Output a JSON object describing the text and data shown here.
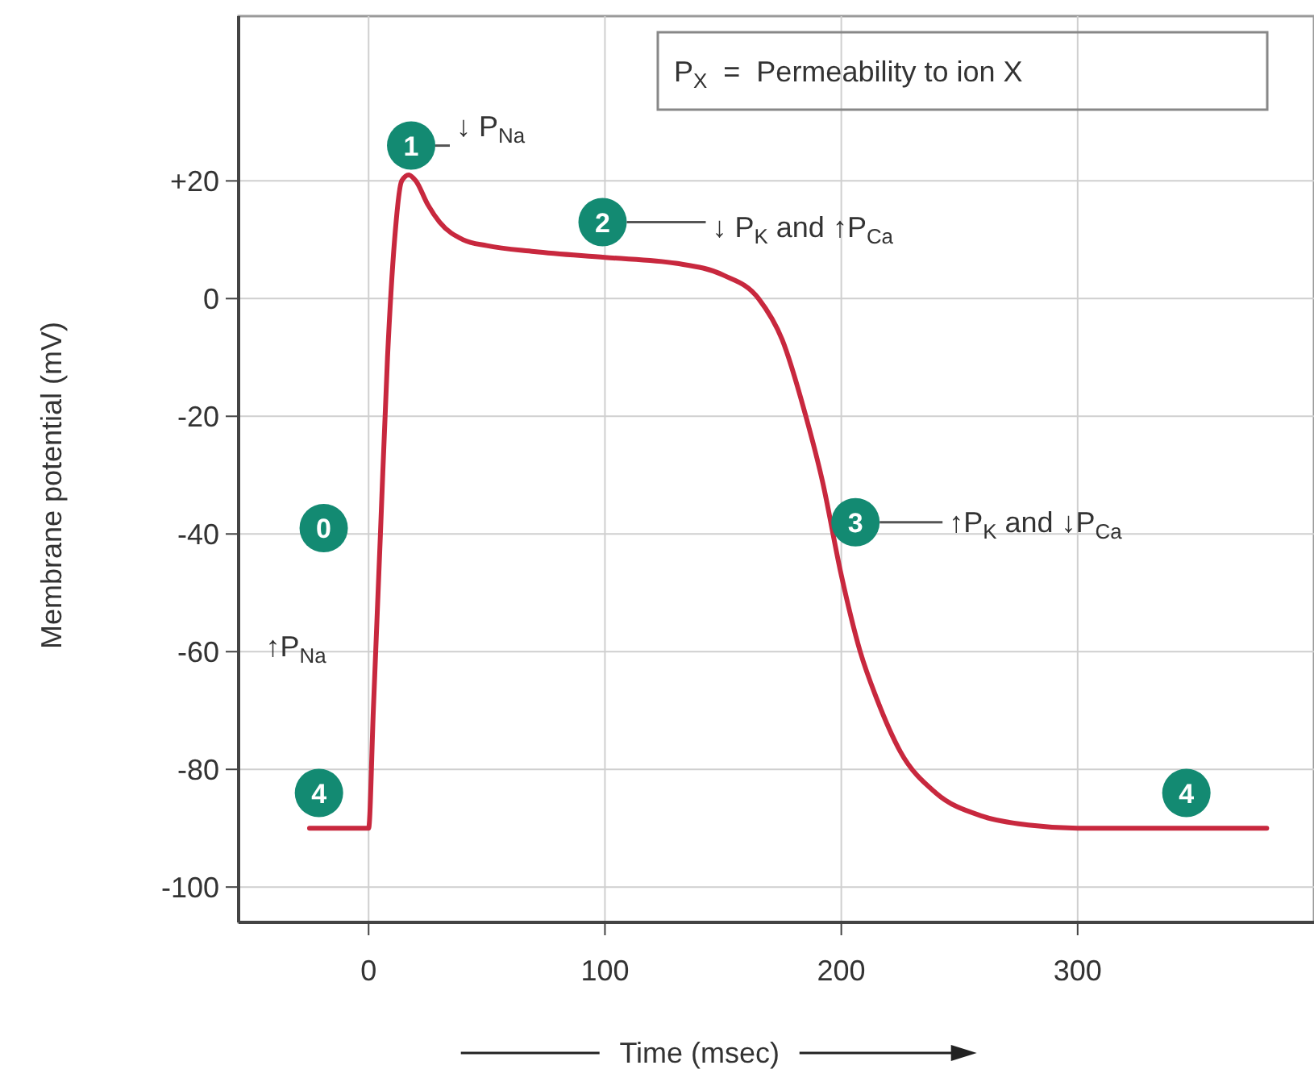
{
  "chart_data": {
    "type": "line",
    "xlabel": "Time (msec)",
    "ylabel": "Membrane potential (mV)",
    "x": [
      -25,
      0,
      2,
      5,
      8,
      11,
      14,
      17,
      20,
      25,
      30,
      40,
      50,
      70,
      100,
      130,
      150,
      165,
      175,
      185,
      192,
      200,
      208,
      215,
      225,
      240,
      260,
      280,
      300,
      340,
      380
    ],
    "series": [
      {
        "color": "#c8283e",
        "values": [
          -90,
          -90,
          -70,
          -40,
          -10,
          10,
          20,
          21,
          20,
          16,
          13,
          10,
          9,
          8,
          7,
          6,
          4,
          0,
          -7,
          -20,
          -31,
          -47,
          -60,
          -68,
          -77,
          -84,
          -88,
          -89.5,
          -90,
          -90,
          -90
        ]
      }
    ],
    "xlim": [
      -55,
      400
    ],
    "ylim": [
      -106,
      48
    ],
    "xticks": [
      0,
      100,
      200,
      300
    ],
    "yticks": [
      {
        "value": 20,
        "label": "+20"
      },
      0,
      -20,
      -40,
      -60,
      -80,
      -100
    ],
    "grid": true,
    "marker": "none",
    "line_style": "solid",
    "annotations": [
      {
        "text": "0",
        "x": -19,
        "y": -39
      },
      "↑P$_{Na}$",
      {
        "text": "1",
        "x": 18,
        "y": 26
      },
      "↓ P$_{Na}$",
      {
        "text": "2",
        "x": 99,
        "y": 13
      },
      "↓ P$_{K}$ and ↑P$_{Ca}$",
      {
        "text": "3",
        "x": 206,
        "y": -38
      },
      "↑P$_{K}$ and ↓P$_{Ca}$",
      {
        "text": "4",
        "x": -21,
        "y": -84
      },
      {
        "text": "4",
        "x": 346,
        "y": -84
      },
      "P$_{X}$  =  Permeability to ion X"
    ]
  }
}
